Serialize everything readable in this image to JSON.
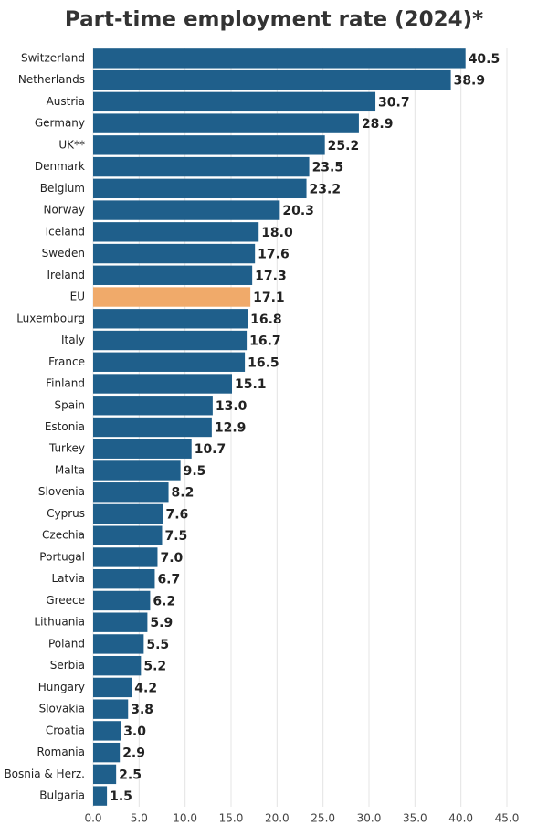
{
  "chart_data": {
    "type": "hbar",
    "title": "Part-time employment rate (2024)*",
    "categories": [
      "Switzerland",
      "Netherlands",
      "Austria",
      "Germany",
      "UK**",
      "Denmark",
      "Belgium",
      "Norway",
      "Iceland",
      "Sweden",
      "Ireland",
      "EU",
      "Luxembourg",
      "Italy",
      "France",
      "Finland",
      "Spain",
      "Estonia",
      "Turkey",
      "Malta",
      "Slovenia",
      "Cyprus",
      "Czechia",
      "Portugal",
      "Latvia",
      "Greece",
      "Lithuania",
      "Poland",
      "Serbia",
      "Hungary",
      "Slovakia",
      "Croatia",
      "Romania",
      "Bosnia & Herz.",
      "Bulgaria"
    ],
    "values": [
      40.5,
      38.9,
      30.7,
      28.9,
      25.2,
      23.5,
      23.2,
      20.3,
      18.0,
      17.6,
      17.3,
      17.1,
      16.8,
      16.7,
      16.5,
      15.1,
      13.0,
      12.9,
      10.7,
      9.5,
      8.2,
      7.6,
      7.5,
      7.0,
      6.7,
      6.2,
      5.9,
      5.5,
      5.2,
      4.2,
      3.8,
      3.0,
      2.9,
      2.5,
      1.5
    ],
    "value_labels": [
      "40.5",
      "38.9",
      "30.7",
      "28.9",
      "25.2",
      "23.5",
      "23.2",
      "20.3",
      "18.0",
      "17.6",
      "17.3",
      "17.1",
      "16.8",
      "16.7",
      "16.5",
      "15.1",
      "13.0",
      "12.9",
      "10.7",
      "9.5",
      "8.2",
      "7.6",
      "7.5",
      "7.0",
      "6.7",
      "6.2",
      "5.9",
      "5.5",
      "5.2",
      "4.2",
      "3.8",
      "3.0",
      "2.9",
      "2.5",
      "1.5"
    ],
    "colors": [
      "#1f5f8b",
      "#1f5f8b",
      "#1f5f8b",
      "#1f5f8b",
      "#1f5f8b",
      "#1f5f8b",
      "#1f5f8b",
      "#1f5f8b",
      "#1f5f8b",
      "#1f5f8b",
      "#1f5f8b",
      "#f0aa6a",
      "#1f5f8b",
      "#1f5f8b",
      "#1f5f8b",
      "#1f5f8b",
      "#1f5f8b",
      "#1f5f8b",
      "#1f5f8b",
      "#1f5f8b",
      "#1f5f8b",
      "#1f5f8b",
      "#1f5f8b",
      "#1f5f8b",
      "#1f5f8b",
      "#1f5f8b",
      "#1f5f8b",
      "#1f5f8b",
      "#1f5f8b",
      "#1f5f8b",
      "#1f5f8b",
      "#1f5f8b",
      "#1f5f8b",
      "#1f5f8b",
      "#1f5f8b"
    ],
    "xlim": [
      0,
      45
    ],
    "xticks": [
      {
        "value": 0,
        "label": "0.0"
      },
      {
        "value": 5,
        "label": "5.0"
      },
      {
        "value": 10,
        "label": "10.0"
      },
      {
        "value": 15,
        "label": "15.0"
      },
      {
        "value": 20,
        "label": "20.0"
      },
      {
        "value": 25,
        "label": "25.0"
      },
      {
        "value": 30,
        "label": "30.0"
      },
      {
        "value": 35,
        "label": "35.0"
      },
      {
        "value": 40,
        "label": "40.0"
      },
      {
        "value": 45,
        "label": "45.0"
      }
    ],
    "grid": true
  }
}
